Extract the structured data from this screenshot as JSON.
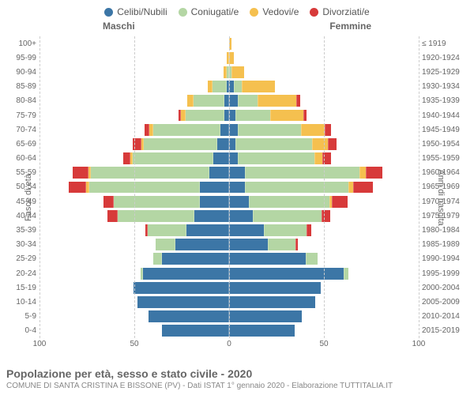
{
  "legend": [
    {
      "label": "Celibi/Nubili",
      "color": "#3c76a6"
    },
    {
      "label": "Coniugati/e",
      "color": "#b4d6a4"
    },
    {
      "label": "Vedovi/e",
      "color": "#f5c04f"
    },
    {
      "label": "Divorziati/e",
      "color": "#d73a3a"
    }
  ],
  "gender_labels": {
    "male": "Maschi",
    "female": "Femmine"
  },
  "axis_labels": {
    "left": "Fasce di età",
    "right": "Anni di nascita"
  },
  "title": "Popolazione per età, sesso e stato civile - 2020",
  "subtitle": "COMUNE DI SANTA CRISTINA E BISSONE (PV) - Dati ISTAT 1° gennaio 2020 - Elaborazione TUTTITALIA.IT",
  "x_ticks": [
    100,
    50,
    0,
    50,
    100
  ],
  "x_max": 100,
  "rows": [
    {
      "age": "100+",
      "birth": "≤ 1919",
      "m": [
        0,
        0,
        0,
        0
      ],
      "f": [
        0,
        0,
        1,
        0
      ]
    },
    {
      "age": "95-99",
      "birth": "1920-1924",
      "m": [
        0,
        0,
        1,
        0
      ],
      "f": [
        0,
        0,
        2,
        0
      ]
    },
    {
      "age": "90-94",
      "birth": "1925-1929",
      "m": [
        0,
        1,
        1,
        0
      ],
      "f": [
        0,
        1,
        6,
        0
      ]
    },
    {
      "age": "85-89",
      "birth": "1930-1934",
      "m": [
        1,
        7,
        2,
        0
      ],
      "f": [
        2,
        4,
        17,
        0
      ]
    },
    {
      "age": "80-84",
      "birth": "1935-1939",
      "m": [
        2,
        16,
        3,
        0
      ],
      "f": [
        4,
        10,
        20,
        2
      ]
    },
    {
      "age": "75-79",
      "birth": "1940-1944",
      "m": [
        2,
        20,
        2,
        1
      ],
      "f": [
        3,
        18,
        17,
        1
      ]
    },
    {
      "age": "70-74",
      "birth": "1945-1949",
      "m": [
        4,
        35,
        2,
        2
      ],
      "f": [
        4,
        33,
        12,
        3
      ]
    },
    {
      "age": "65-69",
      "birth": "1950-1954",
      "m": [
        6,
        38,
        1,
        4
      ],
      "f": [
        3,
        40,
        8,
        4
      ]
    },
    {
      "age": "60-64",
      "birth": "1955-1959",
      "m": [
        8,
        42,
        1,
        3
      ],
      "f": [
        4,
        40,
        4,
        4
      ]
    },
    {
      "age": "55-59",
      "birth": "1960-1964",
      "m": [
        10,
        62,
        1,
        8
      ],
      "f": [
        8,
        60,
        3,
        8
      ]
    },
    {
      "age": "50-54",
      "birth": "1965-1969",
      "m": [
        15,
        58,
        1,
        9
      ],
      "f": [
        8,
        54,
        2,
        10
      ]
    },
    {
      "age": "45-49",
      "birth": "1970-1974",
      "m": [
        15,
        45,
        0,
        5
      ],
      "f": [
        10,
        42,
        1,
        8
      ]
    },
    {
      "age": "40-44",
      "birth": "1975-1979",
      "m": [
        18,
        40,
        0,
        5
      ],
      "f": [
        12,
        36,
        0,
        4
      ]
    },
    {
      "age": "35-39",
      "birth": "1980-1984",
      "m": [
        22,
        20,
        0,
        1
      ],
      "f": [
        18,
        22,
        0,
        2
      ]
    },
    {
      "age": "30-34",
      "birth": "1985-1989",
      "m": [
        28,
        10,
        0,
        0
      ],
      "f": [
        20,
        14,
        0,
        1
      ]
    },
    {
      "age": "25-29",
      "birth": "1990-1994",
      "m": [
        35,
        4,
        0,
        0
      ],
      "f": [
        40,
        6,
        0,
        0
      ]
    },
    {
      "age": "20-24",
      "birth": "1995-1999",
      "m": [
        45,
        1,
        0,
        0
      ],
      "f": [
        60,
        2,
        0,
        0
      ]
    },
    {
      "age": "15-19",
      "birth": "2000-2004",
      "m": [
        50,
        0,
        0,
        0
      ],
      "f": [
        48,
        0,
        0,
        0
      ]
    },
    {
      "age": "10-14",
      "birth": "2005-2009",
      "m": [
        48,
        0,
        0,
        0
      ],
      "f": [
        45,
        0,
        0,
        0
      ]
    },
    {
      "age": "5-9",
      "birth": "2010-2014",
      "m": [
        42,
        0,
        0,
        0
      ],
      "f": [
        38,
        0,
        0,
        0
      ]
    },
    {
      "age": "0-4",
      "birth": "2015-2019",
      "m": [
        35,
        0,
        0,
        0
      ],
      "f": [
        34,
        0,
        0,
        0
      ]
    }
  ],
  "grid_color": "#cccccc"
}
